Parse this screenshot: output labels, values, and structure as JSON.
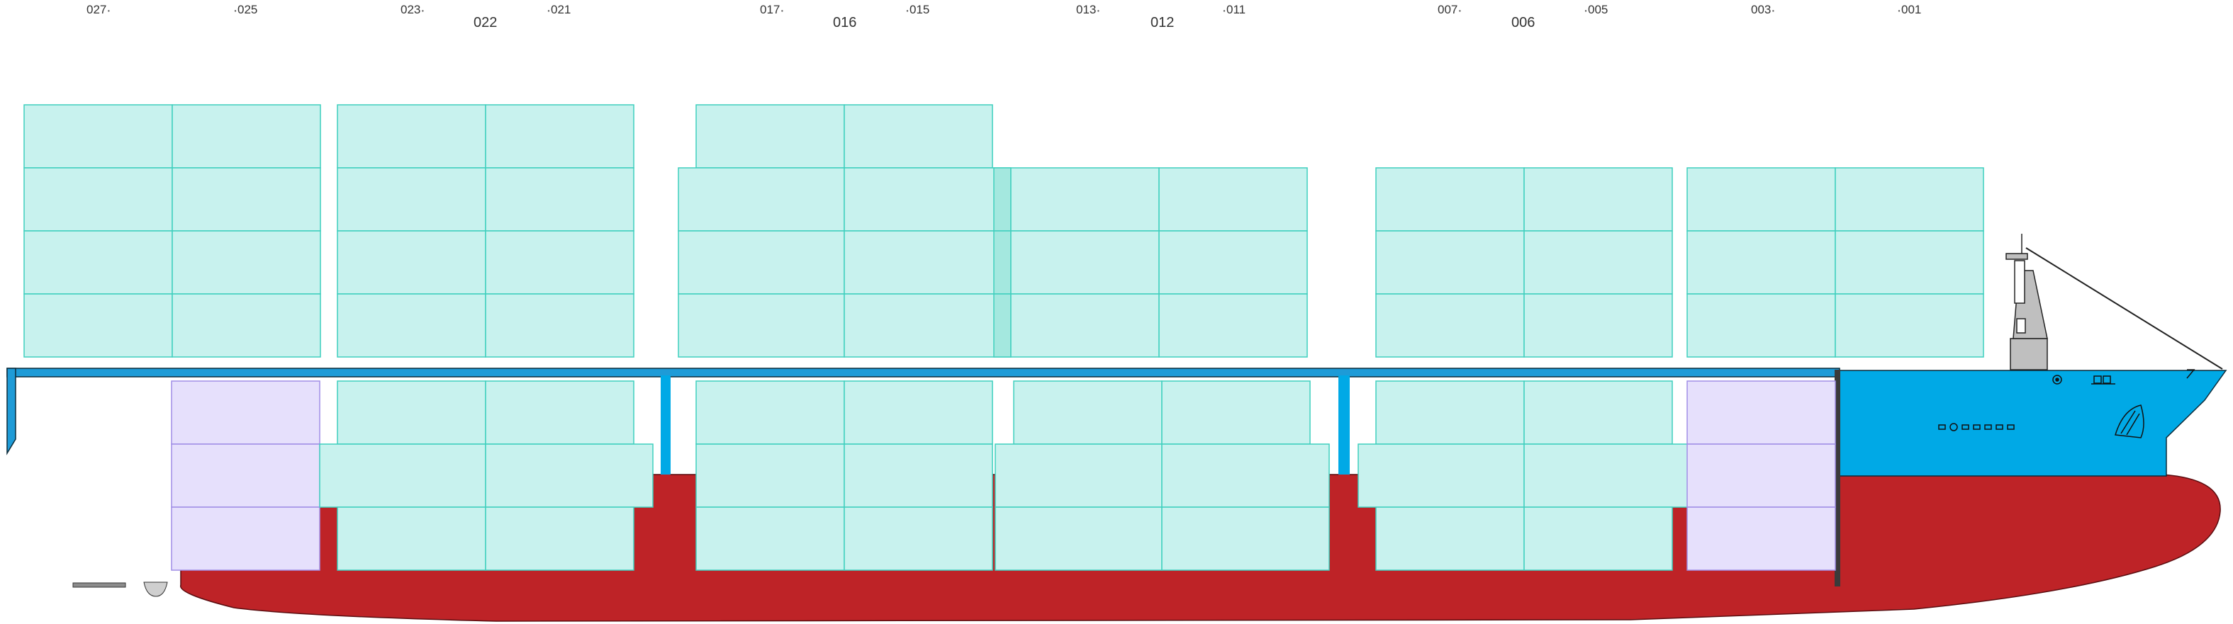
{
  "diagram": {
    "bay_labels_top": [
      "027",
      "025",
      "023",
      "021",
      "017",
      "015",
      "013",
      "011",
      "007",
      "005",
      "003",
      "001"
    ],
    "bay_labels_main": [
      "022",
      "016",
      "012",
      "006"
    ],
    "colors": {
      "hull_red": "#BE2327",
      "hull_blue": "#00A9E6",
      "deck_blue": "#1E9BD7",
      "container_fill": "#C8F2EE",
      "container_stroke": "#3FCFBE",
      "container_dark": "#A4E8DF",
      "reefer_fill": "#E6E0FC",
      "reefer_stroke": "#A08EE6",
      "bulkhead": "#BE2327",
      "superstructure": "#BFBFBF"
    },
    "icons": [
      "bridge-mast-icon",
      "bow-thruster-icon",
      "draft-marks-icon",
      "bulbous-bow-icon",
      "stern-propeller-icon"
    ]
  }
}
